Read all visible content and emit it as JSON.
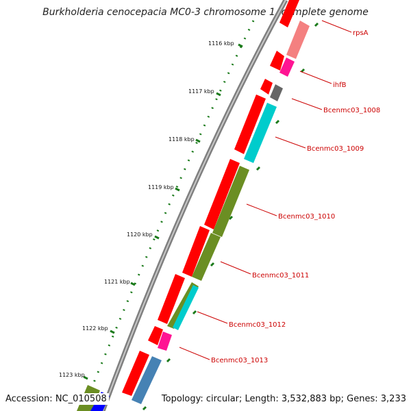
{
  "title": "Burkholderia cenocepacia MC0-3 chromosome 1, complete genome",
  "footer": {
    "accession": "Accession: NC_010508",
    "topology": "Topology: circular; Length: 3,532,883 bp; Genes: 3,233"
  },
  "ticks": [
    "1116 kbp",
    "1117 kbp",
    "1118 kbp",
    "1119 kbp",
    "1120 kbp",
    "1121 kbp",
    "1122 kbp",
    "1123 kbp"
  ],
  "genes": [
    "rpsA",
    "ihfB",
    "Bcenmc03_1008",
    "Bcenmc03_1009",
    "Bcenmc03_1010",
    "Bcenmc03_1011",
    "Bcenmc03_1012",
    "Bcenmc03_1013"
  ],
  "colors": {
    "tick": "#1a7a1a",
    "label": "#cc0000",
    "gene_red": "#ff0000",
    "light_red": "#f48080",
    "magenta": "#ff1493",
    "gray": "#666666",
    "cyan": "#00cccc",
    "olive": "#6b8e23",
    "steel": "#4682b4",
    "blue": "#0000ff"
  }
}
